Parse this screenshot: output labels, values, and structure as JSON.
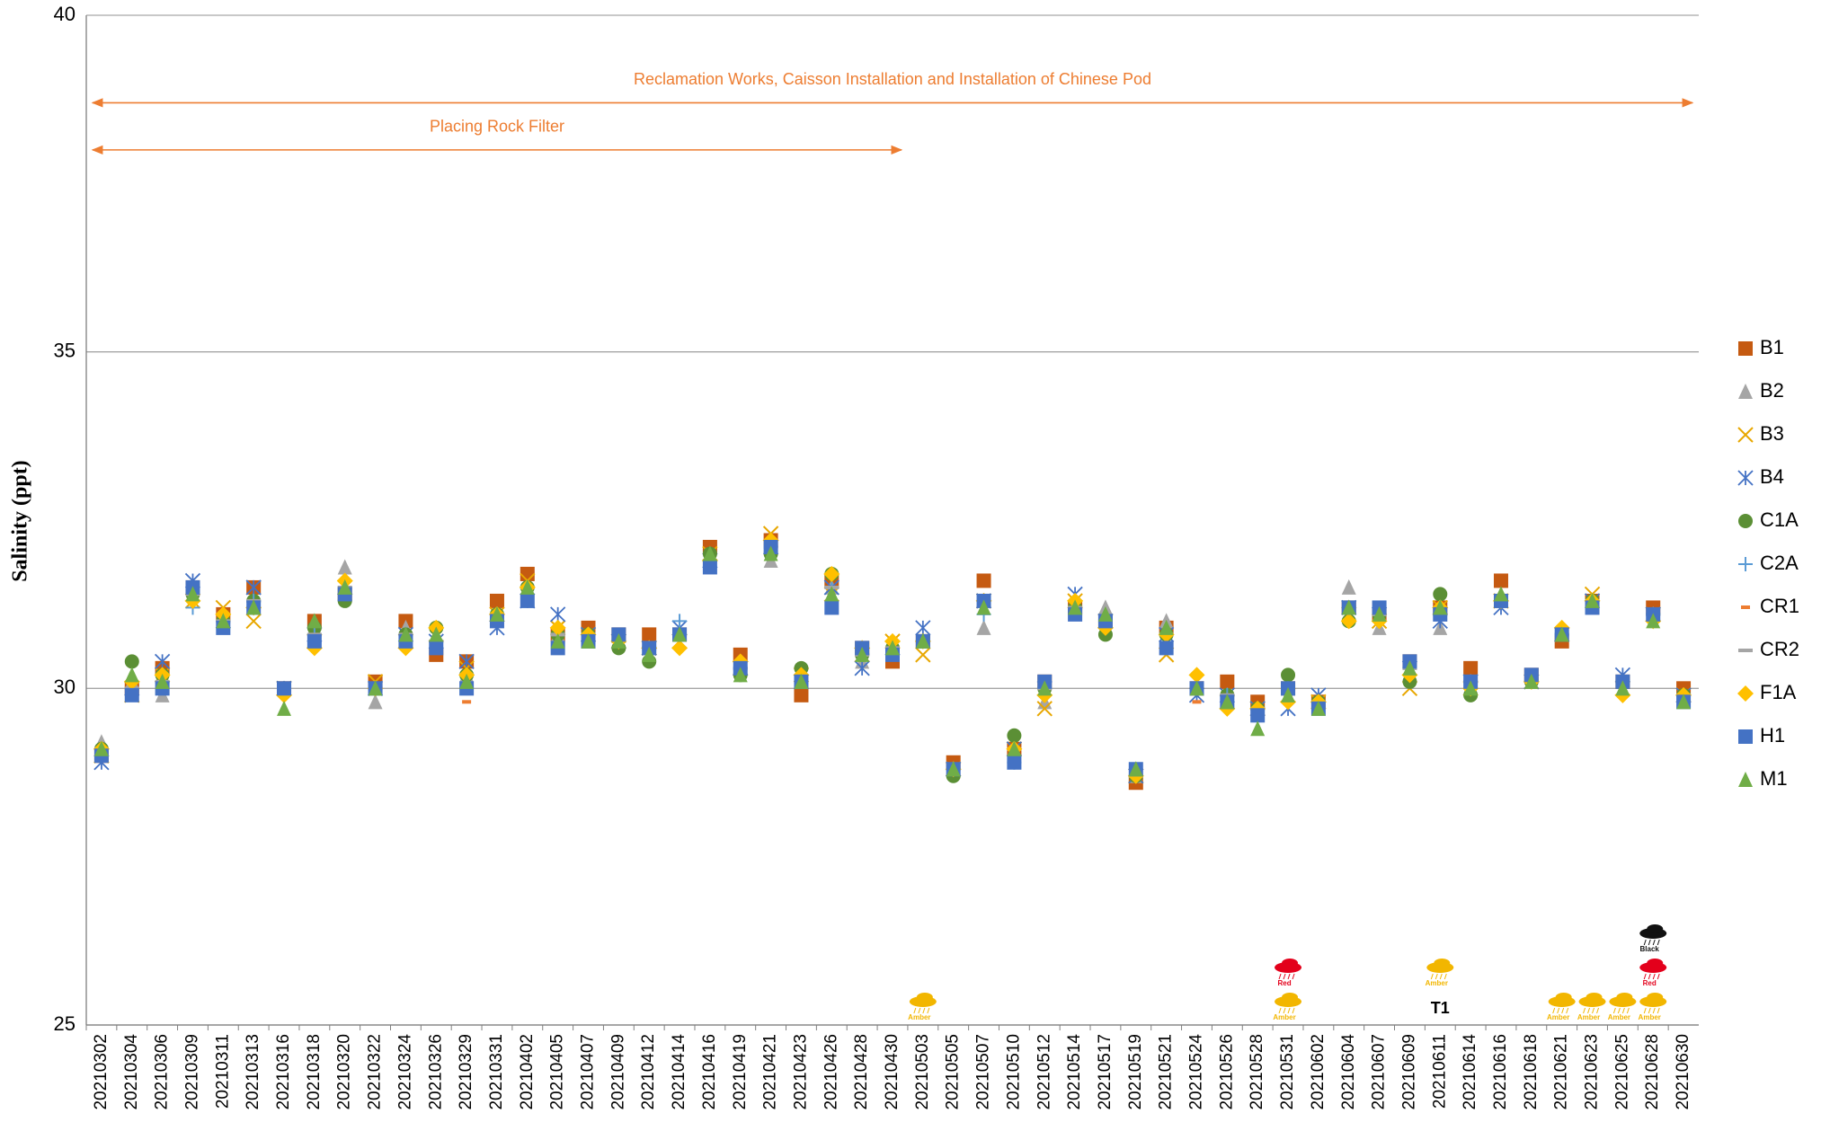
{
  "chart_data": {
    "type": "scatter",
    "y_label": "Salinity (ppt)",
    "ylim": [
      25,
      40
    ],
    "yticks": [
      25,
      30,
      35,
      40
    ],
    "grid": true,
    "legend": "right",
    "categories": [
      "20210302",
      "20210304",
      "20210306",
      "20210309",
      "20210311",
      "20210313",
      "20210316",
      "20210318",
      "20210320",
      "20210322",
      "20210324",
      "20210326",
      "20210329",
      "20210331",
      "20210402",
      "20210405",
      "20210407",
      "20210409",
      "20210412",
      "20210414",
      "20210416",
      "20210419",
      "20210421",
      "20210423",
      "20210426",
      "20210428",
      "20210430",
      "20210503",
      "20210505",
      "20210507",
      "20210510",
      "20210512",
      "20210514",
      "20210517",
      "20210519",
      "20210521",
      "20210524",
      "20210526",
      "20210528",
      "20210531",
      "20210602",
      "20210604",
      "20210607",
      "20210609",
      "20210611",
      "20210614",
      "20210616",
      "20210618",
      "20210621",
      "20210623",
      "20210625",
      "20210628",
      "20210630"
    ],
    "series": [
      {
        "name": "B1",
        "color": "#c55a11",
        "marker": "square",
        "values": [
          29.0,
          30.0,
          30.3,
          31.5,
          31.1,
          31.5,
          30.0,
          31.0,
          31.4,
          30.1,
          31.0,
          30.5,
          30.4,
          31.3,
          31.7,
          30.8,
          30.9,
          30.8,
          30.8,
          30.8,
          32.1,
          30.5,
          32.2,
          29.9,
          31.6,
          30.6,
          30.4,
          30.7,
          28.9,
          31.6,
          29.1,
          30.1,
          31.2,
          31.0,
          28.6,
          30.9,
          30.0,
          30.1,
          29.8,
          30.0,
          29.8,
          31.2,
          31.1,
          30.4,
          31.2,
          30.3,
          31.6,
          30.2,
          30.7,
          31.3,
          30.1,
          31.2,
          30.0
        ]
      },
      {
        "name": "B2",
        "color": "#a5a5a5",
        "marker": "triangle",
        "values": [
          29.2,
          30.1,
          29.9,
          31.5,
          31.0,
          31.3,
          30.0,
          30.9,
          31.8,
          29.8,
          30.9,
          30.7,
          30.2,
          31.1,
          31.5,
          30.8,
          30.7,
          30.7,
          30.6,
          30.8,
          32.0,
          30.3,
          31.9,
          30.1,
          31.5,
          30.4,
          30.6,
          30.7,
          28.8,
          30.9,
          29.1,
          29.8,
          31.2,
          31.2,
          28.7,
          31.0,
          30.0,
          29.9,
          29.7,
          30.0,
          29.8,
          31.5,
          30.9,
          30.3,
          30.9,
          30.1,
          31.3,
          30.1,
          30.8,
          31.3,
          30.0,
          31.1,
          29.9
        ]
      },
      {
        "name": "B3",
        "color": "#e8a700",
        "marker": "x",
        "values": [
          29.0,
          29.9,
          30.2,
          31.3,
          31.2,
          31.0,
          30.0,
          30.7,
          31.5,
          30.1,
          30.7,
          30.8,
          30.3,
          31.1,
          31.6,
          30.9,
          30.8,
          30.7,
          30.6,
          30.7,
          32.0,
          30.3,
          32.3,
          30.2,
          31.4,
          30.5,
          30.7,
          30.5,
          28.8,
          31.3,
          29.1,
          29.7,
          31.3,
          31.0,
          28.7,
          30.5,
          30.1,
          29.8,
          29.7,
          29.9,
          29.8,
          31.1,
          31.0,
          30.0,
          31.2,
          30.0,
          31.3,
          30.1,
          30.8,
          31.4,
          30.0,
          31.1,
          29.9
        ]
      },
      {
        "name": "B4",
        "color": "#4472c4",
        "marker": "asterisk",
        "values": [
          28.9,
          30.0,
          30.4,
          31.6,
          31.0,
          31.5,
          30.0,
          30.8,
          31.5,
          30.0,
          30.8,
          30.7,
          30.4,
          30.9,
          31.3,
          31.1,
          30.8,
          30.7,
          30.6,
          30.9,
          31.9,
          30.3,
          32.1,
          30.1,
          31.5,
          30.3,
          30.6,
          30.9,
          28.8,
          31.3,
          29.1,
          30.0,
          31.4,
          31.0,
          28.7,
          30.8,
          29.9,
          29.9,
          29.7,
          29.7,
          29.9,
          31.2,
          31.1,
          30.3,
          31.0,
          30.1,
          31.2,
          30.1,
          30.8,
          31.3,
          30.2,
          31.1,
          29.9
        ]
      },
      {
        "name": "C1A",
        "color": "#5b8f35",
        "marker": "circle",
        "values": [
          29.1,
          30.4,
          30.2,
          31.4,
          31.0,
          31.3,
          30.0,
          30.9,
          31.3,
          30.0,
          30.8,
          30.9,
          30.2,
          31.1,
          31.5,
          30.8,
          30.8,
          30.6,
          30.4,
          30.8,
          32.0,
          30.2,
          32.0,
          30.3,
          31.7,
          30.5,
          30.6,
          30.7,
          28.7,
          31.3,
          29.3,
          30.0,
          31.2,
          30.8,
          28.7,
          30.8,
          30.0,
          29.9,
          29.7,
          30.2,
          29.8,
          31.0,
          31.1,
          30.1,
          31.4,
          29.9,
          31.3,
          30.1,
          30.8,
          31.3,
          30.1,
          31.1,
          29.9
        ]
      },
      {
        "name": "C2A",
        "color": "#5b9bd5",
        "marker": "plus",
        "values": [
          29.1,
          30.0,
          30.1,
          31.2,
          31.1,
          31.3,
          30.0,
          30.8,
          31.5,
          30.0,
          30.8,
          30.7,
          30.2,
          31.1,
          31.5,
          30.8,
          30.8,
          30.7,
          30.6,
          31.0,
          31.9,
          30.3,
          32.1,
          30.1,
          31.5,
          30.5,
          30.6,
          30.7,
          28.8,
          31.1,
          28.9,
          30.0,
          31.2,
          31.0,
          28.7,
          30.8,
          30.0,
          29.9,
          29.7,
          30.0,
          29.8,
          31.2,
          31.1,
          30.3,
          31.1,
          30.1,
          31.3,
          30.1,
          30.8,
          31.3,
          30.1,
          31.1,
          29.9
        ]
      },
      {
        "name": "CR1",
        "color": "#ed7d31",
        "marker": "dash",
        "values": [
          29.0,
          30.0,
          30.1,
          31.4,
          31.0,
          31.3,
          30.0,
          30.8,
          31.5,
          30.0,
          30.8,
          30.7,
          29.8,
          31.1,
          31.5,
          30.8,
          30.8,
          30.7,
          30.6,
          30.8,
          31.9,
          30.3,
          32.1,
          30.1,
          31.5,
          30.5,
          30.6,
          30.7,
          28.8,
          31.3,
          29.1,
          30.0,
          31.2,
          31.0,
          28.7,
          30.8,
          29.8,
          29.9,
          29.7,
          30.0,
          29.8,
          31.2,
          31.1,
          30.3,
          31.1,
          30.1,
          31.3,
          30.1,
          30.8,
          31.3,
          30.1,
          31.1,
          29.9
        ]
      },
      {
        "name": "CR2",
        "color": "#a5a5a5",
        "marker": "longdash",
        "values": [
          29.1,
          30.0,
          30.1,
          31.4,
          31.0,
          31.3,
          30.0,
          30.8,
          31.5,
          30.0,
          30.8,
          30.7,
          30.2,
          31.1,
          31.5,
          30.8,
          30.8,
          30.7,
          30.6,
          30.8,
          31.9,
          30.3,
          32.1,
          30.1,
          31.5,
          30.5,
          30.6,
          30.7,
          28.8,
          31.3,
          29.1,
          30.0,
          31.2,
          31.0,
          28.7,
          30.8,
          30.0,
          29.9,
          29.7,
          30.0,
          29.8,
          31.2,
          31.1,
          30.3,
          31.1,
          30.1,
          31.3,
          30.1,
          30.8,
          31.3,
          30.1,
          31.1,
          29.9
        ]
      },
      {
        "name": "F1A",
        "color": "#ffc000",
        "marker": "diamond",
        "values": [
          29.1,
          30.1,
          30.2,
          31.3,
          31.1,
          31.2,
          29.9,
          30.6,
          31.6,
          30.0,
          30.6,
          30.9,
          30.2,
          31.1,
          31.5,
          30.9,
          30.8,
          30.7,
          30.6,
          30.6,
          31.9,
          30.4,
          32.2,
          30.2,
          31.7,
          30.6,
          30.7,
          30.7,
          28.8,
          31.3,
          29.1,
          29.9,
          31.3,
          30.9,
          28.7,
          30.8,
          30.2,
          29.7,
          29.7,
          29.8,
          29.8,
          31.0,
          31.0,
          30.2,
          31.2,
          30.0,
          31.3,
          30.1,
          30.9,
          31.3,
          29.9,
          31.0,
          29.9
        ]
      },
      {
        "name": "H1",
        "color": "#4472c4",
        "marker": "square",
        "values": [
          29.0,
          29.9,
          30.0,
          31.5,
          30.9,
          31.2,
          30.0,
          30.7,
          31.4,
          30.0,
          30.7,
          30.6,
          30.0,
          31.0,
          31.3,
          30.6,
          30.7,
          30.8,
          30.6,
          30.8,
          31.8,
          30.3,
          32.1,
          30.1,
          31.2,
          30.6,
          30.5,
          30.7,
          28.8,
          31.3,
          28.9,
          30.1,
          31.1,
          31.0,
          28.8,
          30.6,
          30.0,
          29.8,
          29.6,
          30.0,
          29.7,
          31.2,
          31.2,
          30.4,
          31.1,
          30.1,
          31.3,
          30.2,
          30.8,
          31.2,
          30.1,
          31.1,
          29.8
        ]
      },
      {
        "name": "M1",
        "color": "#70ad47",
        "marker": "triangle",
        "values": [
          29.1,
          30.2,
          30.1,
          31.4,
          31.0,
          31.2,
          29.7,
          31.0,
          31.5,
          30.0,
          30.8,
          30.8,
          30.1,
          31.1,
          31.5,
          30.7,
          30.7,
          30.7,
          30.5,
          30.8,
          32.0,
          30.2,
          32.0,
          30.1,
          31.4,
          30.5,
          30.6,
          30.7,
          28.8,
          31.2,
          29.1,
          30.0,
          31.2,
          31.1,
          28.8,
          30.9,
          30.0,
          29.8,
          29.4,
          29.9,
          29.7,
          31.2,
          31.1,
          30.3,
          31.2,
          30.0,
          31.4,
          30.1,
          30.8,
          31.3,
          30.0,
          31.0,
          29.8
        ]
      }
    ],
    "annotations": [
      {
        "text": "Reclamation Works, Caisson Installation and Installation of Chinese Pod",
        "from": "20210302",
        "to": "20210630",
        "y": 38.7,
        "color": "#ed7d31"
      },
      {
        "text": "Placing Rock Filter",
        "from": "20210302",
        "to": "20210430",
        "y": 38.0,
        "color": "#ed7d31"
      }
    ],
    "weather_signals": [
      {
        "category": "20210503",
        "labels": [
          "Amber"
        ]
      },
      {
        "category": "20210531",
        "labels": [
          "Amber",
          "Red"
        ]
      },
      {
        "category": "20210611",
        "labels": [
          "T1",
          "Amber"
        ]
      },
      {
        "category": "20210621",
        "labels": [
          "Amber"
        ]
      },
      {
        "category": "20210623",
        "labels": [
          "Amber"
        ]
      },
      {
        "category": "20210625",
        "labels": [
          "Amber"
        ]
      },
      {
        "category": "20210628",
        "labels": [
          "Amber",
          "Red",
          "Black"
        ]
      }
    ]
  }
}
